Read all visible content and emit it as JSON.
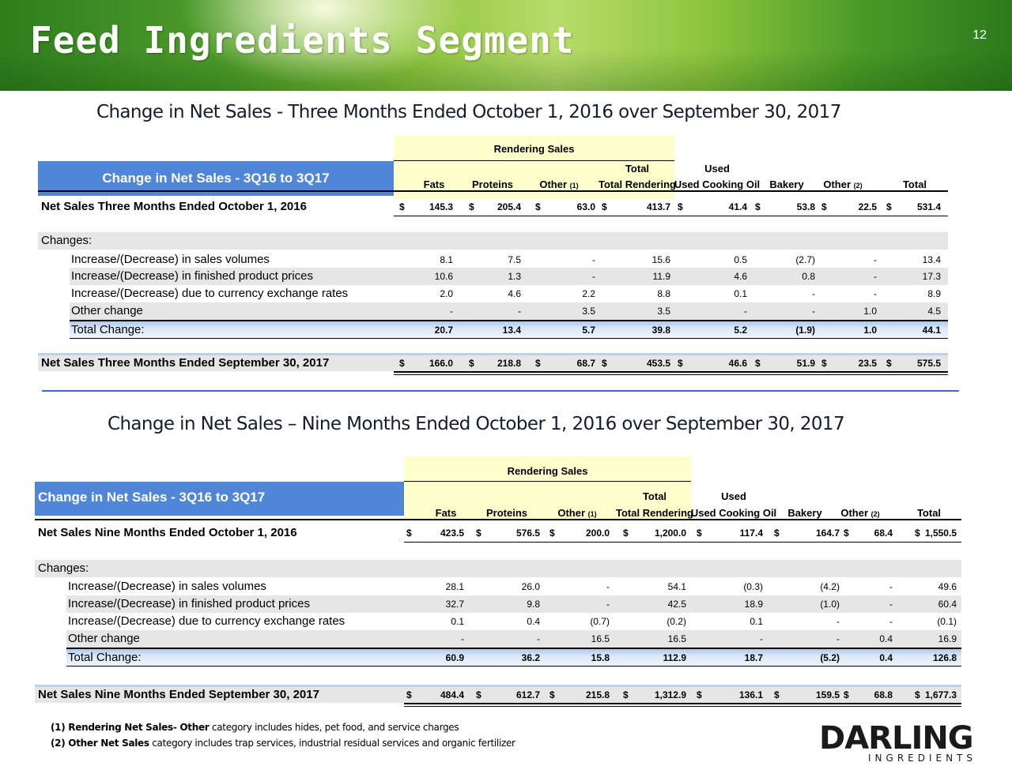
{
  "header": {
    "title": "Feed Ingredients Segment",
    "page_number": "12"
  },
  "sections": [
    {
      "title": "Change in Net Sales  - Three Months Ended October 1, 2016 over September 30, 2017",
      "rendering_sales_label": "Rendering Sales",
      "table_title": "Change in Net Sales - 3Q16 to 3Q17",
      "columns": [
        "Fats",
        "Proteins",
        "Other",
        "Total Rendering",
        "Used Cooking Oil",
        "Bakery",
        "Other",
        "Total"
      ],
      "start_row": {
        "label": "Net Sales Three Months Ended October 1, 2016",
        "values": [
          "145.3",
          "205.4",
          "63.0",
          "413.7",
          "41.4",
          "53.8",
          "22.5",
          "531.4"
        ]
      },
      "changes_label": "Changes:",
      "change_rows": [
        {
          "label": "Increase/(Decrease) in sales volumes",
          "values": [
            "8.1",
            "7.5",
            "-",
            "15.6",
            "0.5",
            "(2.7)",
            "-",
            "13.4"
          ]
        },
        {
          "label": "Increase/(Decrease) in finished product prices",
          "values": [
            "10.6",
            "1.3",
            "-",
            "11.9",
            "4.6",
            "0.8",
            "-",
            "17.3"
          ]
        },
        {
          "label": "Increase/(Decrease) due to currency exchange rates",
          "values": [
            "2.0",
            "4.6",
            "2.2",
            "8.8",
            "0.1",
            "-",
            "-",
            "8.9"
          ]
        },
        {
          "label": "Other change",
          "values": [
            "-",
            "-",
            "3.5",
            "3.5",
            "-",
            "-",
            "1.0",
            "4.5"
          ]
        }
      ],
      "total_row": {
        "label": "Total Change:",
        "values": [
          "20.7",
          "13.4",
          "5.7",
          "39.8",
          "5.2",
          "(1.9)",
          "1.0",
          "44.1"
        ]
      },
      "end_row": {
        "label": "Net Sales Three Months Ended September 30, 2017",
        "values": [
          "166.0",
          "218.8",
          "68.7",
          "453.5",
          "46.6",
          "51.9",
          "23.5",
          "575.5"
        ]
      }
    },
    {
      "title": "Change in Net Sales – Nine Months Ended October 1, 2016 over September 30, 2017",
      "rendering_sales_label": "Rendering Sales",
      "table_title": "Change in Net Sales - 3Q16 to 3Q17",
      "columns": [
        "Fats",
        "Proteins",
        "Other",
        "Total Rendering",
        "Used Cooking Oil",
        "Bakery",
        "Other",
        "Total"
      ],
      "start_row": {
        "label": "Net Sales Nine Months Ended October 1, 2016",
        "values": [
          "423.5",
          "576.5",
          "200.0",
          "1,200.0",
          "117.4",
          "164.7",
          "68.4",
          "1,550.5"
        ]
      },
      "changes_label": "Changes:",
      "change_rows": [
        {
          "label": "Increase/(Decrease) in sales volumes",
          "values": [
            "28.1",
            "26.0",
            "-",
            "54.1",
            "(0.3)",
            "(4.2)",
            "-",
            "49.6"
          ]
        },
        {
          "label": "Increase/(Decrease) in finished product prices",
          "values": [
            "32.7",
            "9.8",
            "-",
            "42.5",
            "18.9",
            "(1.0)",
            "-",
            "60.4"
          ]
        },
        {
          "label": "Increase/(Decrease) due to currency exchange rates",
          "values": [
            "0.1",
            "0.4",
            "(0.7)",
            "(0.2)",
            "0.1",
            "-",
            "-",
            "(0.1)"
          ]
        },
        {
          "label": "Other change",
          "values": [
            "-",
            "-",
            "16.5",
            "16.5",
            "-",
            "-",
            "0.4",
            "16.9"
          ]
        }
      ],
      "total_row": {
        "label": "Total Change:",
        "values": [
          "60.9",
          "36.2",
          "15.8",
          "112.9",
          "18.7",
          "(5.2)",
          "0.4",
          "126.8"
        ]
      },
      "end_row": {
        "label": "Net Sales Nine Months Ended September 30, 2017",
        "values": [
          "484.4",
          "612.7",
          "215.8",
          "1,312.9",
          "136.1",
          "159.5",
          "68.8",
          "1,677.3"
        ]
      }
    }
  ],
  "currency_symbol": "$",
  "footnote_refs": [
    "(1)",
    "(2)"
  ],
  "footnotes": [
    {
      "ref": "(1) Rendering Net Sales- Other",
      "text": " category includes hides, pet food, and service charges"
    },
    {
      "ref": "(2) Other Net Sales",
      "text": " category includes trap services, industrial residual services and organic fertilizer"
    }
  ],
  "logo": {
    "word": "DARLING",
    "sub": "INGREDIENTS"
  },
  "colors": {
    "table_header_blue": "#4f86d8",
    "rendering_box": "#ffffcc",
    "divider": "#2b6fd0"
  }
}
